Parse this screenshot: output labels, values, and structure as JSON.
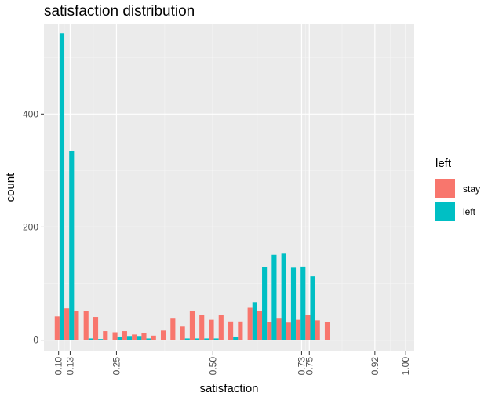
{
  "chart_data": {
    "type": "bar",
    "title": "satisfaction distribution",
    "xlabel": "satisfaction",
    "ylabel": "count",
    "xlim": [
      0.062,
      1.022
    ],
    "ylim": [
      -20,
      560
    ],
    "x_ticks": [
      0.1,
      0.13,
      0.25,
      0.5,
      0.73,
      0.75,
      0.92,
      1.0
    ],
    "x_tick_labels": [
      "0.10",
      "0.13",
      "0.25",
      "0.50",
      "0.73",
      "0.75",
      "0.92",
      "1.00"
    ],
    "y_ticks": [
      0,
      200,
      400
    ],
    "y_tick_labels": [
      "0",
      "200",
      "400"
    ],
    "grid": true,
    "legend_position": "right",
    "legend_title": "left",
    "bin_width": 0.025,
    "bin_centers": [
      0.1025,
      0.1275,
      0.1525,
      0.1775,
      0.2025,
      0.2275,
      0.2525,
      0.2775,
      0.3025,
      0.3275,
      0.3525,
      0.3775,
      0.4025,
      0.4275,
      0.4525,
      0.4775,
      0.5025,
      0.5275,
      0.5525,
      0.5775,
      0.6025,
      0.6275,
      0.6525,
      0.6775,
      0.7025,
      0.7275,
      0.7525,
      0.7775,
      0.8025,
      0.8275,
      0.8525,
      0.8775,
      0.9025,
      0.9275,
      0.9525,
      0.9775
    ],
    "series": [
      {
        "name": "stay",
        "color": "#F8766D",
        "values": [
          42,
          56,
          51,
          51,
          41,
          16,
          14,
          16,
          10,
          13,
          8,
          17,
          38,
          24,
          51,
          44,
          36,
          44,
          33,
          33,
          57,
          51,
          32,
          38,
          31,
          36,
          44,
          35,
          32,
          0,
          0,
          0,
          0,
          0,
          0,
          0
        ]
      },
      {
        "name": "left",
        "color": "#00BFC4",
        "values": [
          543,
          335,
          0,
          3,
          2,
          0,
          5,
          6,
          6,
          3,
          0,
          0,
          0,
          3,
          3,
          3,
          3,
          0,
          5,
          0,
          67,
          129,
          151,
          153,
          128,
          130,
          113,
          0,
          0,
          0,
          0,
          0,
          0,
          0,
          0,
          0
        ]
      }
    ]
  }
}
